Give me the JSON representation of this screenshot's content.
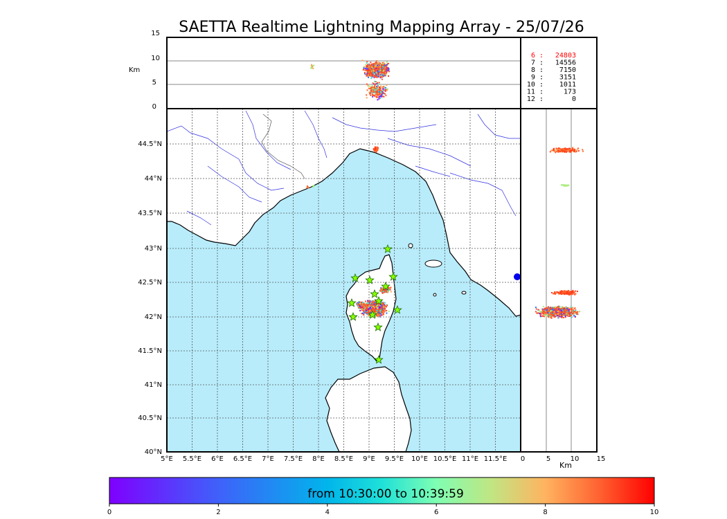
{
  "title": "SAETTA Realtime Lightning Mapping Array - 25/07/26",
  "altitude_panel": {
    "unit_label": "Km",
    "ticks": [
      "15",
      "10",
      "5",
      "0"
    ]
  },
  "map": {
    "lon_ticks": [
      "5°E",
      "5.5°E",
      "6°E",
      "6.5°E",
      "7°E",
      "7.5°E",
      "8°E",
      "8.5°E",
      "9°E",
      "9.5°E",
      "10°E",
      "10.5°E",
      "11°E",
      "11.5°E"
    ],
    "lat_ticks": [
      "44.5°N",
      "44°N",
      "43.5°N",
      "43°N",
      "42.5°N",
      "42°N",
      "41.5°N",
      "41°N",
      "40.5°N",
      "40°N"
    ],
    "sea_color": "#b8ecfb",
    "land_color": "#ffffff"
  },
  "side_panel": {
    "unit_label": "Km",
    "ticks": [
      "0",
      "5",
      "10",
      "15"
    ]
  },
  "station_counts": [
    {
      "label": "6 :",
      "value": "24803",
      "color": "#ff0000"
    },
    {
      "label": "7 :",
      "value": "14556",
      "color": "#000000"
    },
    {
      "label": "8 :",
      "value": "7150",
      "color": "#000000"
    },
    {
      "label": "9 :",
      "value": "3151",
      "color": "#000000"
    },
    {
      "label": "10 :",
      "value": "1011",
      "color": "#000000"
    },
    {
      "label": "11 :",
      "value": "173",
      "color": "#000000"
    },
    {
      "label": "12 :",
      "value": "0",
      "color": "#000000"
    }
  ],
  "colorbar": {
    "text": "from 10:30:00 to 10:39:59",
    "ticks": [
      "0",
      "2",
      "4",
      "6",
      "8",
      "10"
    ]
  },
  "stations_marker": "star-icon"
}
